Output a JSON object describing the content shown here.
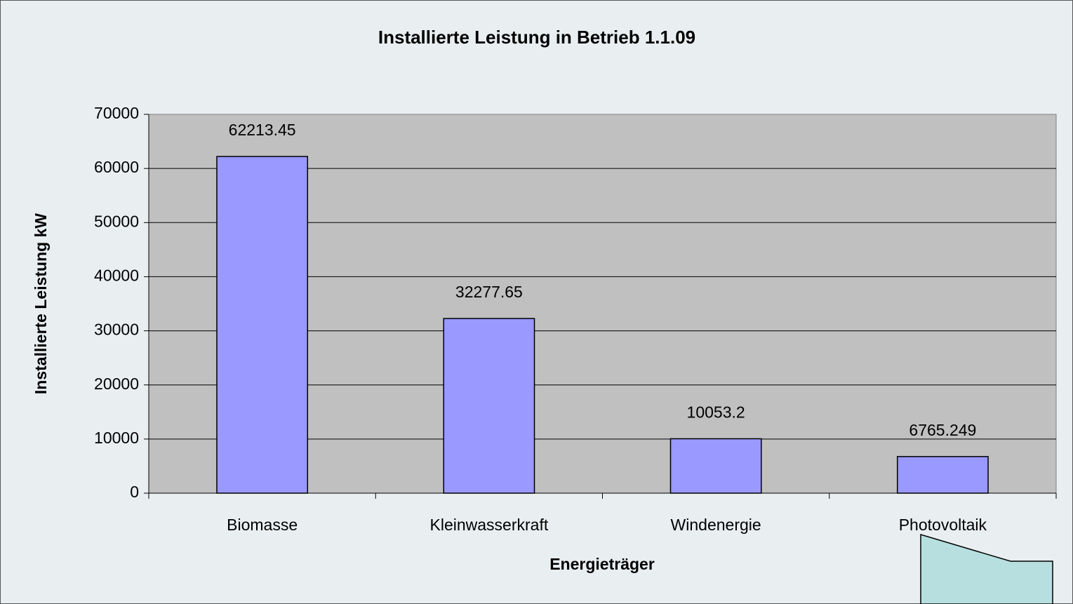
{
  "chart_data": {
    "type": "bar",
    "title": "Installierte Leistung in Betrieb 1.1.09",
    "x_label": "Energieträger",
    "y_label": "Installierte Leistung kW",
    "categories": [
      "Biomasse",
      "Kleinwasserkraft",
      "Windenergie",
      "Photovoltaik"
    ],
    "values": [
      62213.45,
      32277.65,
      10053.2,
      6765.249
    ],
    "color": "#9999ff",
    "ylim": [
      0,
      70000
    ],
    "yticks": [
      0,
      10000,
      20000,
      30000,
      40000,
      50000,
      60000,
      70000
    ],
    "grid": true
  }
}
